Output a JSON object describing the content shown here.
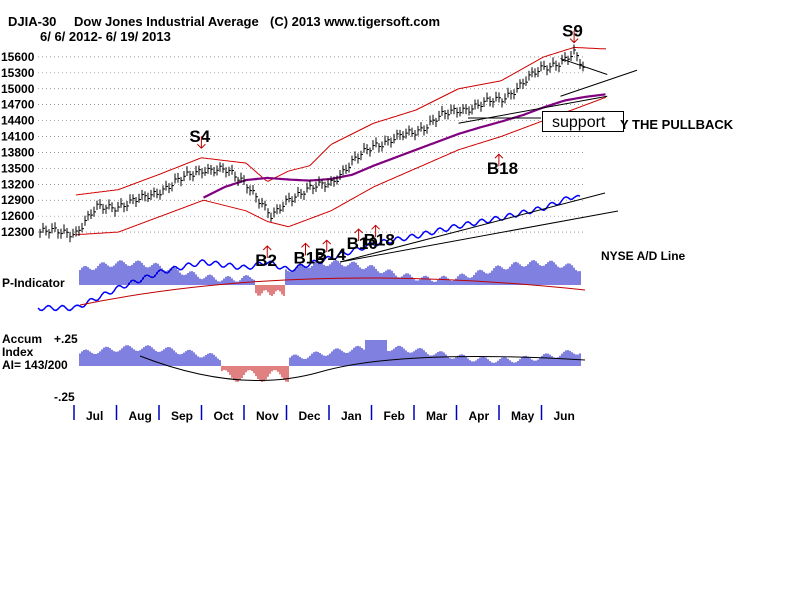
{
  "header": {
    "symbol": "DJIA-30",
    "name": "Dow Jones Industrial Average",
    "copyright": "(C) 2013 www.tigersoft.com",
    "date_range": "6/ 6/ 2012- 6/ 19/ 2013"
  },
  "annotations": {
    "support_label": "support",
    "pullback_label": "Y THE PULLBACK",
    "ad_line_label": "NYSE A/D Line",
    "p_indicator_label": "P-Indicator",
    "accum_label_1": "Accum",
    "accum_label_2": "Index",
    "accum_label_3": "AI= 143/200",
    "accum_top": "+.25",
    "accum_bottom": "-.25"
  },
  "signals": [
    {
      "label": "S9",
      "month_pos": 11.72,
      "value": 15870
    },
    {
      "label": "S4",
      "month_pos": 2.95,
      "value": 13880
    },
    {
      "label": "B18",
      "month_pos": 9.95,
      "value": 13880
    },
    {
      "label": "B2",
      "month_pos": 4.5,
      "value": 12150
    },
    {
      "label": "B13",
      "month_pos": 5.4,
      "value": 12200
    },
    {
      "label": "B14",
      "month_pos": 5.9,
      "value": 12260
    },
    {
      "label": "B10",
      "month_pos": 6.65,
      "value": 12470
    },
    {
      "label": "B18",
      "month_pos": 7.05,
      "value": 12540
    }
  ],
  "colors": {
    "bars": "#000000",
    "bands": "#d00000",
    "ma": "#800080",
    "adline": "#0000ff",
    "pos": "#0000c0",
    "neg": "#c00000"
  },
  "chart_data": {
    "type": "line",
    "title": "DJIA-30 Dow Jones Industrial Average",
    "ylabel": "",
    "xlabel": "",
    "ylim": [
      12150,
      15750
    ],
    "y_ticks": [
      15600,
      15300,
      15000,
      14700,
      14400,
      14100,
      13800,
      13500,
      13200,
      12900,
      12600,
      12300
    ],
    "x_months": [
      "Jul",
      "Aug",
      "Sep",
      "Oct",
      "Nov",
      "Dec",
      "Jan",
      "Feb",
      "Mar",
      "Apr",
      "May",
      "Jun"
    ],
    "series": [
      {
        "name": "DJIA price",
        "x": [
          0,
          0.5,
          1,
          1.5,
          2,
          2.5,
          3,
          3.5,
          4,
          4.3,
          4.6,
          5,
          5.5,
          6,
          6.5,
          7,
          7.5,
          8,
          8.5,
          9,
          9.5,
          10,
          10.5,
          11,
          11.5,
          11.72,
          12,
          12.3,
          12.5
        ],
        "values": [
          12300,
          12750,
          12800,
          12900,
          13100,
          13300,
          13500,
          13450,
          13250,
          12900,
          12550,
          12950,
          13100,
          13250,
          13600,
          13950,
          14050,
          14200,
          14450,
          14600,
          14700,
          14800,
          15100,
          15400,
          15550,
          15650,
          15300,
          15100,
          15200
        ]
      },
      {
        "name": "Upper band",
        "x": [
          0,
          1,
          2,
          2.95,
          4,
          4.5,
          5,
          5.5,
          6,
          7,
          8,
          9,
          10,
          11,
          11.72,
          12.5
        ],
        "values": [
          13000,
          13100,
          13400,
          13700,
          13600,
          13250,
          13450,
          13550,
          13950,
          14350,
          14600,
          15000,
          15150,
          15600,
          15780,
          15750
        ]
      },
      {
        "name": "Lower band",
        "x": [
          0,
          1,
          2,
          3,
          4,
          4.5,
          5,
          6,
          7,
          8,
          9,
          10,
          11,
          12,
          12.5
        ],
        "values": [
          12250,
          12300,
          12600,
          12900,
          12700,
          12500,
          12400,
          12700,
          13150,
          13500,
          13850,
          14100,
          14400,
          14700,
          14850
        ]
      },
      {
        "name": "Moving average",
        "x": [
          3,
          3.5,
          4,
          4.5,
          5,
          5.5,
          6,
          6.5,
          7,
          7.5,
          8,
          8.5,
          9,
          9.5,
          10,
          10.5,
          11,
          11.5,
          12,
          12.5
        ],
        "values": [
          12950,
          13150,
          13280,
          13320,
          13290,
          13270,
          13300,
          13380,
          13550,
          13700,
          13850,
          14000,
          14150,
          14270,
          14380,
          14500,
          14650,
          14780,
          14850,
          14900
        ]
      }
    ],
    "support_lines": [
      {
        "x": [
          9,
          12.5
        ],
        "values": [
          14350,
          14860
        ]
      },
      {
        "x": [
          11.4,
          12.5
        ],
        "values": [
          15570,
          15270
        ]
      },
      {
        "x": [
          11.4,
          13.2
        ],
        "values": [
          14860,
          15350
        ]
      }
    ]
  }
}
